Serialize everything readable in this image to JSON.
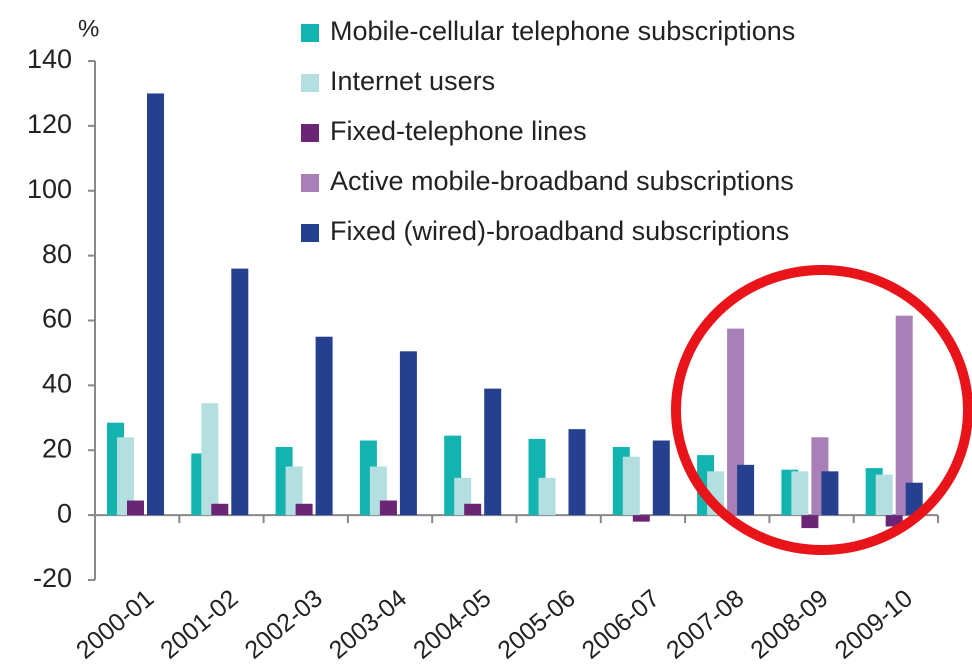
{
  "chart_data": {
    "type": "bar",
    "y_label": "%",
    "categories": [
      "2000-01",
      "2001-02",
      "2002-03",
      "2003-04",
      "2004-05",
      "2005-06",
      "2006-07",
      "2007-08",
      "2008-09",
      "2009-10"
    ],
    "series": [
      {
        "name": "Mobile-cellular telephone subscriptions",
        "color": "#13b3af",
        "values": [
          28.5,
          19,
          21,
          23,
          24.5,
          23.5,
          21,
          18.5,
          14,
          14.5
        ]
      },
      {
        "name": "Internet users",
        "color": "#b4dfe0",
        "values": [
          24,
          34.5,
          15,
          15,
          11.5,
          11.5,
          18,
          13.5,
          13.5,
          12.5
        ]
      },
      {
        "name": "Fixed-telephone lines",
        "color": "#6b2575",
        "values": [
          4.5,
          3.5,
          3.5,
          4.5,
          3.5,
          null,
          -2,
          null,
          -4,
          -3.5
        ]
      },
      {
        "name": "Active mobile-broadband subscriptions",
        "color": "#a87fb6",
        "values": [
          null,
          null,
          null,
          null,
          null,
          null,
          null,
          57.5,
          24,
          61.5
        ]
      },
      {
        "name": "Fixed (wired)-broadband subscriptions",
        "color": "#25408f",
        "values": [
          130,
          76,
          55,
          50.5,
          39,
          26.5,
          23,
          15.5,
          13.5,
          10
        ]
      }
    ],
    "ylim": [
      -20,
      140
    ],
    "yticks": [
      -20,
      0,
      20,
      40,
      60,
      80,
      100,
      120,
      140
    ],
    "legend": "top-right"
  }
}
